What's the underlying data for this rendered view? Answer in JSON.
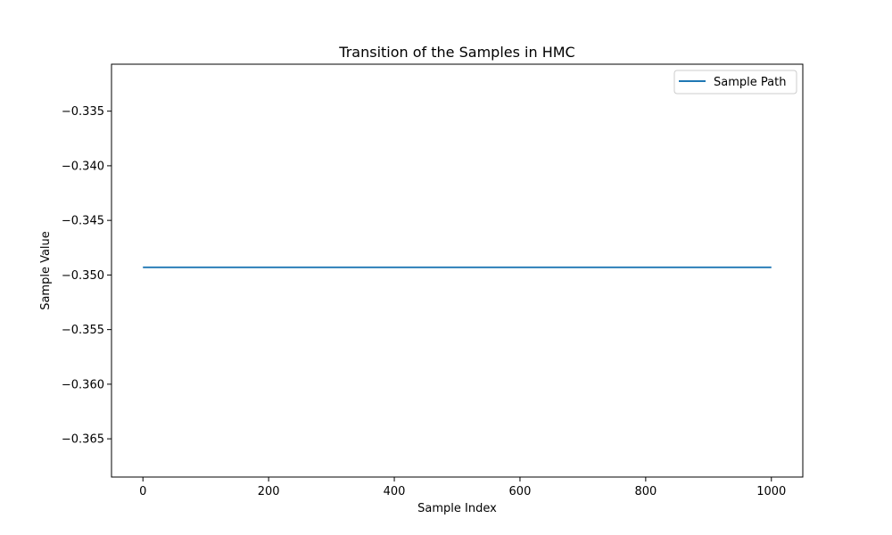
{
  "chart_data": {
    "type": "line",
    "title": "Transition of the Samples in HMC",
    "xlabel": "Sample Index",
    "ylabel": "Sample Value",
    "xlim": [
      -50,
      1050
    ],
    "ylim": [
      -0.3685,
      -0.3307
    ],
    "xticks": [
      0,
      200,
      400,
      600,
      800,
      1000
    ],
    "xtick_labels": [
      "0",
      "200",
      "400",
      "600",
      "800",
      "1000"
    ],
    "yticks": [
      -0.335,
      -0.34,
      -0.345,
      -0.35,
      -0.355,
      -0.36,
      -0.365
    ],
    "ytick_labels": [
      "−0.335",
      "−0.340",
      "−0.345",
      "−0.350",
      "−0.355",
      "−0.360",
      "−0.365"
    ],
    "grid": false,
    "legend_position": "top-right",
    "series": [
      {
        "name": "Sample Path",
        "color": "#1f77b4",
        "x": [
          0,
          1000
        ],
        "values": [
          -0.3493,
          -0.3493
        ]
      }
    ]
  }
}
